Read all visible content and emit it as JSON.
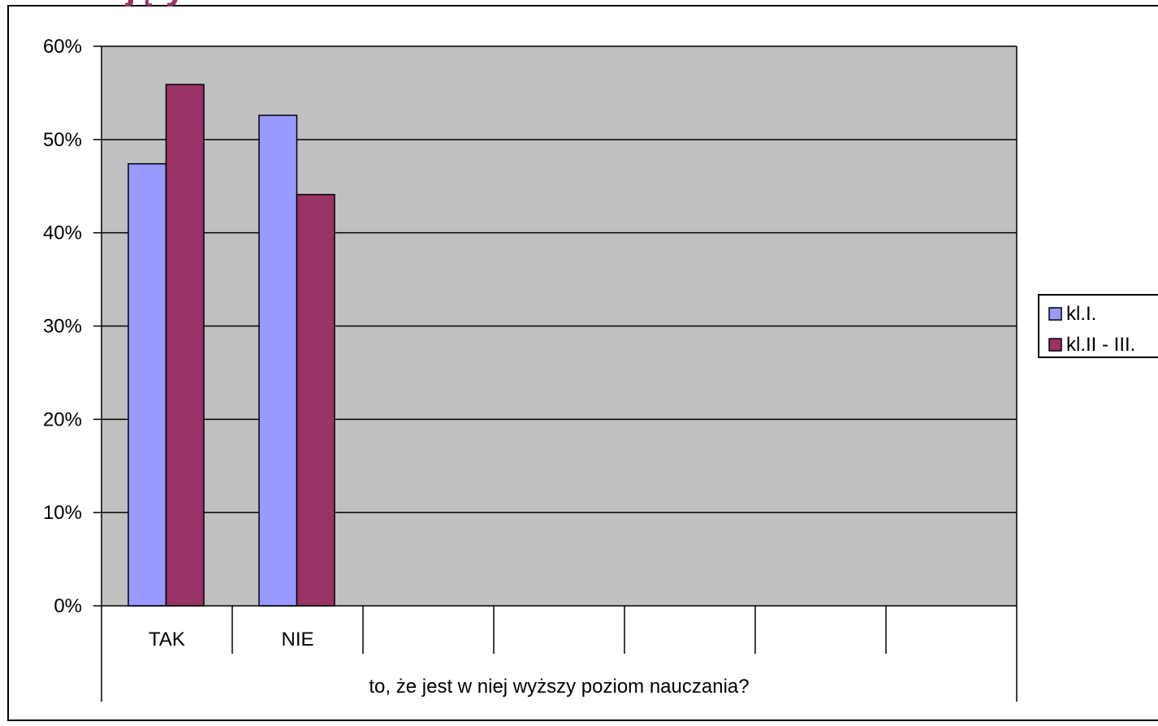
{
  "header": {
    "title_fragment": "ujęły"
  },
  "chart_data": {
    "type": "bar",
    "categories": [
      "TAK",
      "NIE",
      "",
      "",
      "",
      "",
      ""
    ],
    "group_label": "to, że jest w niej wyższy poziom nauczania?",
    "series": [
      {
        "name": "kl.I.",
        "color": "#9999FF",
        "values": [
          0.474,
          0.526,
          null,
          null,
          null,
          null,
          null
        ]
      },
      {
        "name": "kl.II - III.",
        "color": "#993366",
        "values": [
          0.559,
          0.441,
          null,
          null,
          null,
          null,
          null
        ]
      }
    ],
    "yticks": [
      "0%",
      "10%",
      "20%",
      "30%",
      "40%",
      "50%",
      "60%"
    ],
    "ylim": [
      0,
      0.6
    ],
    "plot_background": "#C0C0C0",
    "grid": true,
    "legend": "right"
  }
}
